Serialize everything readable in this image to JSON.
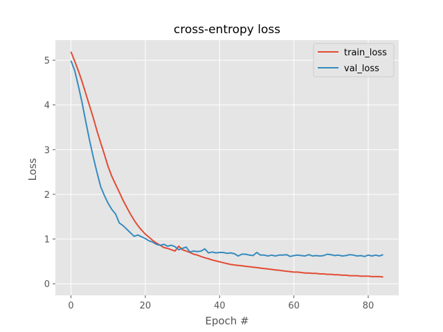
{
  "chart_data": {
    "type": "line",
    "title": "cross-entropy loss",
    "xlabel": "Epoch #",
    "ylabel": "Loss",
    "xlim": [
      -4.2,
      88.2
    ],
    "ylim": [
      -0.26,
      5.45
    ],
    "xticks": [
      0,
      20,
      40,
      60,
      80
    ],
    "yticks": [
      0,
      1,
      2,
      3,
      4,
      5
    ],
    "grid": true,
    "legend": "top-right",
    "x": [
      0,
      1,
      2,
      3,
      4,
      5,
      6,
      7,
      8,
      9,
      10,
      11,
      12,
      13,
      14,
      15,
      16,
      17,
      18,
      19,
      20,
      21,
      22,
      23,
      24,
      25,
      26,
      27,
      28,
      29,
      30,
      31,
      32,
      33,
      34,
      35,
      36,
      37,
      38,
      39,
      40,
      41,
      42,
      43,
      44,
      45,
      46,
      47,
      48,
      49,
      50,
      51,
      52,
      53,
      54,
      55,
      56,
      57,
      58,
      59,
      60,
      61,
      62,
      63,
      64,
      65,
      66,
      67,
      68,
      69,
      70,
      71,
      72,
      73,
      74,
      75,
      76,
      77,
      78,
      79,
      80,
      81,
      82,
      83,
      84
    ],
    "series": [
      {
        "name": "train_loss",
        "color": "#E24A33",
        "values": [
          5.19,
          4.98,
          4.76,
          4.52,
          4.25,
          3.98,
          3.71,
          3.42,
          3.15,
          2.89,
          2.62,
          2.4,
          2.22,
          2.05,
          1.87,
          1.71,
          1.56,
          1.42,
          1.3,
          1.2,
          1.11,
          1.04,
          0.97,
          0.91,
          0.86,
          0.81,
          0.79,
          0.76,
          0.73,
          0.84,
          0.76,
          0.73,
          0.7,
          0.66,
          0.64,
          0.61,
          0.58,
          0.56,
          0.53,
          0.51,
          0.49,
          0.47,
          0.45,
          0.43,
          0.42,
          0.41,
          0.4,
          0.39,
          0.38,
          0.37,
          0.36,
          0.35,
          0.34,
          0.33,
          0.32,
          0.31,
          0.3,
          0.29,
          0.28,
          0.27,
          0.26,
          0.26,
          0.25,
          0.24,
          0.24,
          0.23,
          0.23,
          0.22,
          0.22,
          0.21,
          0.21,
          0.2,
          0.2,
          0.19,
          0.19,
          0.18,
          0.18,
          0.18,
          0.17,
          0.17,
          0.17,
          0.16,
          0.16,
          0.16,
          0.15
        ]
      },
      {
        "name": "val_loss",
        "color": "#348ABD",
        "values": [
          4.99,
          4.77,
          4.42,
          4.05,
          3.62,
          3.21,
          2.83,
          2.49,
          2.17,
          1.97,
          1.8,
          1.66,
          1.56,
          1.36,
          1.3,
          1.22,
          1.14,
          1.06,
          1.09,
          1.05,
          1.01,
          0.96,
          0.93,
          0.88,
          0.86,
          0.88,
          0.84,
          0.86,
          0.83,
          0.76,
          0.79,
          0.82,
          0.71,
          0.73,
          0.72,
          0.73,
          0.78,
          0.69,
          0.71,
          0.69,
          0.7,
          0.7,
          0.68,
          0.69,
          0.67,
          0.62,
          0.66,
          0.66,
          0.64,
          0.63,
          0.7,
          0.64,
          0.64,
          0.62,
          0.64,
          0.62,
          0.64,
          0.64,
          0.65,
          0.61,
          0.63,
          0.64,
          0.63,
          0.62,
          0.65,
          0.62,
          0.63,
          0.62,
          0.63,
          0.66,
          0.65,
          0.63,
          0.64,
          0.62,
          0.63,
          0.65,
          0.64,
          0.62,
          0.63,
          0.61,
          0.64,
          0.62,
          0.64,
          0.62,
          0.65
        ]
      }
    ]
  }
}
